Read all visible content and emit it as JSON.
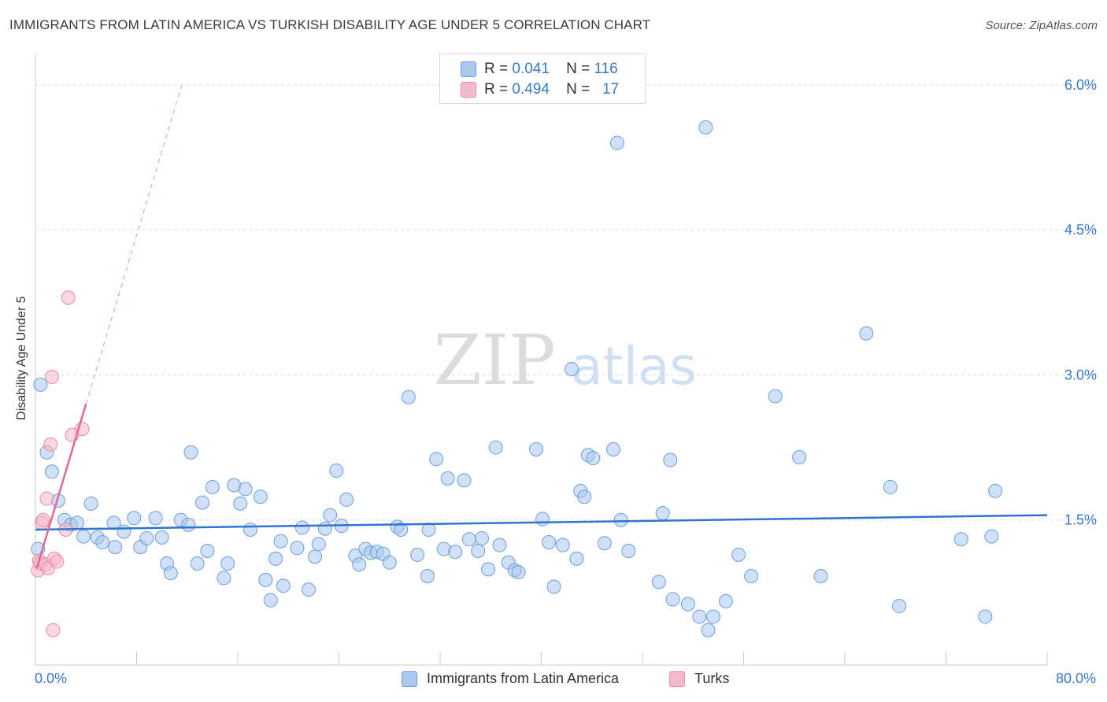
{
  "header": {
    "title": "IMMIGRANTS FROM LATIN AMERICA VS TURKISH DISABILITY AGE UNDER 5 CORRELATION CHART",
    "source": "Source: ZipAtlas.com"
  },
  "watermark": {
    "zip": "ZIP",
    "atlas": "atlas"
  },
  "legend_top": [
    {
      "r_label": "R =",
      "r_value": "0.041",
      "n_label": "N =",
      "n_value": "116",
      "color": "#a9c7ef"
    },
    {
      "r_label": "R =",
      "r_value": "0.494",
      "n_label": "N =",
      "n_value": "17",
      "color": "#f6b8cb"
    }
  ],
  "legend_bottom": [
    {
      "label": "Immigrants from Latin America",
      "color": "#a9c7ef"
    },
    {
      "label": "Turks",
      "color": "#f6b8cb"
    }
  ],
  "colors": {
    "blue_fill": "#a9c7ef",
    "blue_stroke": "#6a9fdd",
    "blue_line": "#2f74d0",
    "pink_fill": "#f6b8cb",
    "pink_stroke": "#e98aa6",
    "pink_line": "#e4669a",
    "axis_text": "#3a78c9",
    "grid": "#dddddd"
  },
  "chart_data": {
    "type": "scatter",
    "title": "IMMIGRANTS FROM LATIN AMERICA VS TURKISH DISABILITY AGE UNDER 5 CORRELATION CHART",
    "xlabel": "",
    "ylabel": "Disability Age Under 5",
    "xlim": [
      0,
      80
    ],
    "ylim": [
      0,
      6.3
    ],
    "x_tick_labels": [
      "0.0%",
      "80.0%"
    ],
    "y_ticks": [
      1.5,
      3.0,
      4.5,
      6.0
    ],
    "y_tick_labels": [
      "1.5%",
      "3.0%",
      "4.5%",
      "6.0%"
    ],
    "grid": true,
    "legend_placement": "top-center",
    "series": [
      {
        "name": "Immigrants from Latin America",
        "color": "#a9c7ef",
        "trend": {
          "x": [
            0,
            80
          ],
          "y": [
            1.4,
            1.55
          ]
        },
        "points": [
          [
            0.4,
            2.9
          ],
          [
            0.9,
            2.2
          ],
          [
            1.3,
            2.0
          ],
          [
            1.8,
            1.7
          ],
          [
            2.3,
            1.5
          ],
          [
            2.8,
            1.45
          ],
          [
            3.3,
            1.47
          ],
          [
            3.8,
            1.33
          ],
          [
            4.4,
            1.67
          ],
          [
            4.9,
            1.32
          ],
          [
            5.3,
            1.27
          ],
          [
            6.2,
            1.47
          ],
          [
            6.3,
            1.22
          ],
          [
            7.0,
            1.38
          ],
          [
            7.8,
            1.52
          ],
          [
            8.3,
            1.22
          ],
          [
            8.8,
            1.31
          ],
          [
            9.5,
            1.52
          ],
          [
            10.0,
            1.32
          ],
          [
            10.4,
            1.05
          ],
          [
            10.7,
            0.95
          ],
          [
            11.5,
            1.5
          ],
          [
            12.1,
            1.45
          ],
          [
            12.3,
            2.2
          ],
          [
            12.8,
            1.05
          ],
          [
            13.2,
            1.68
          ],
          [
            13.6,
            1.18
          ],
          [
            14.0,
            1.84
          ],
          [
            14.9,
            0.9
          ],
          [
            15.2,
            1.05
          ],
          [
            15.7,
            1.86
          ],
          [
            16.2,
            1.67
          ],
          [
            16.6,
            1.82
          ],
          [
            17.0,
            1.4
          ],
          [
            17.8,
            1.74
          ],
          [
            18.2,
            0.88
          ],
          [
            18.6,
            0.67
          ],
          [
            19.0,
            1.1
          ],
          [
            19.6,
            0.82
          ],
          [
            19.4,
            1.28
          ],
          [
            20.7,
            1.21
          ],
          [
            21.1,
            1.42
          ],
          [
            21.6,
            0.78
          ],
          [
            22.1,
            1.12
          ],
          [
            22.4,
            1.25
          ],
          [
            22.9,
            1.41
          ],
          [
            23.3,
            1.55
          ],
          [
            23.8,
            2.01
          ],
          [
            24.2,
            1.44
          ],
          [
            24.6,
            1.71
          ],
          [
            25.3,
            1.13
          ],
          [
            25.6,
            1.04
          ],
          [
            26.1,
            1.2
          ],
          [
            26.5,
            1.16
          ],
          [
            27.0,
            1.17
          ],
          [
            27.5,
            1.15
          ],
          [
            28.0,
            1.06
          ],
          [
            28.6,
            1.43
          ],
          [
            28.9,
            1.4
          ],
          [
            29.5,
            2.77
          ],
          [
            30.2,
            1.14
          ],
          [
            31.0,
            0.92
          ],
          [
            31.1,
            1.4
          ],
          [
            31.7,
            2.13
          ],
          [
            32.3,
            1.2
          ],
          [
            32.6,
            1.93
          ],
          [
            33.2,
            1.17
          ],
          [
            33.9,
            1.91
          ],
          [
            34.3,
            1.3
          ],
          [
            35.0,
            1.18
          ],
          [
            35.3,
            1.31
          ],
          [
            35.8,
            0.99
          ],
          [
            36.4,
            2.25
          ],
          [
            36.7,
            1.24
          ],
          [
            37.4,
            1.06
          ],
          [
            37.9,
            0.98
          ],
          [
            38.2,
            0.96
          ],
          [
            39.6,
            2.23
          ],
          [
            40.1,
            1.51
          ],
          [
            40.6,
            1.27
          ],
          [
            41.0,
            0.81
          ],
          [
            41.7,
            1.24
          ],
          [
            42.4,
            3.06
          ],
          [
            42.8,
            1.1
          ],
          [
            43.1,
            1.8
          ],
          [
            43.4,
            1.74
          ],
          [
            43.7,
            2.17
          ],
          [
            44.1,
            2.14
          ],
          [
            45.7,
            2.23
          ],
          [
            45.0,
            1.26
          ],
          [
            46.0,
            5.4
          ],
          [
            46.3,
            1.5
          ],
          [
            46.9,
            1.18
          ],
          [
            49.3,
            0.86
          ],
          [
            49.6,
            1.57
          ],
          [
            50.2,
            2.12
          ],
          [
            50.4,
            0.68
          ],
          [
            51.6,
            0.63
          ],
          [
            52.5,
            0.5
          ],
          [
            53.0,
            5.56
          ],
          [
            53.2,
            0.36
          ],
          [
            53.6,
            0.5
          ],
          [
            54.6,
            0.66
          ],
          [
            55.6,
            1.14
          ],
          [
            56.6,
            0.92
          ],
          [
            58.5,
            2.78
          ],
          [
            60.4,
            2.15
          ],
          [
            62.1,
            0.92
          ],
          [
            65.7,
            3.43
          ],
          [
            67.6,
            1.84
          ],
          [
            68.3,
            0.61
          ],
          [
            73.2,
            1.3
          ],
          [
            75.1,
            0.5
          ],
          [
            75.6,
            1.33
          ],
          [
            75.9,
            1.8
          ],
          [
            0.2,
            1.2
          ]
        ]
      },
      {
        "name": "Turks",
        "color": "#f6b8cb",
        "trend": {
          "x": [
            0.1,
            4.0
          ],
          "y": [
            1.0,
            2.7
          ]
        },
        "points": [
          [
            0.2,
            0.98
          ],
          [
            0.3,
            1.08
          ],
          [
            0.4,
            1.05
          ],
          [
            0.5,
            1.47
          ],
          [
            0.6,
            1.5
          ],
          [
            0.8,
            1.04
          ],
          [
            0.9,
            1.72
          ],
          [
            1.0,
            1.0
          ],
          [
            1.2,
            2.28
          ],
          [
            1.3,
            2.98
          ],
          [
            1.4,
            0.36
          ],
          [
            1.5,
            1.1
          ],
          [
            1.7,
            1.07
          ],
          [
            2.4,
            1.4
          ],
          [
            2.6,
            3.8
          ],
          [
            2.9,
            2.38
          ],
          [
            3.7,
            2.44
          ]
        ]
      }
    ]
  }
}
